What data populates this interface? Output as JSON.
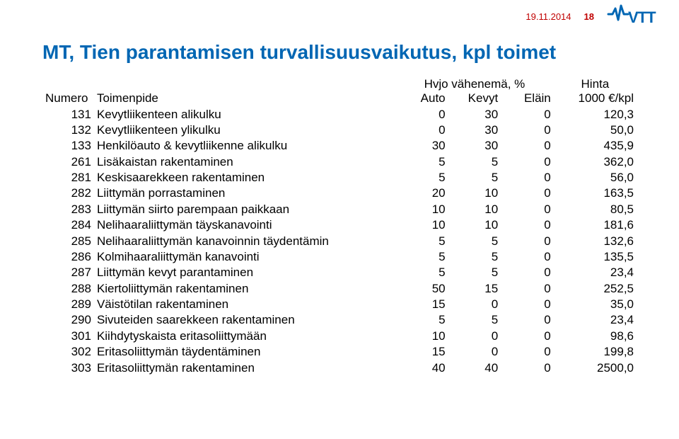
{
  "header": {
    "date": "19.11.2014",
    "page_number": "18"
  },
  "title": "MT, Tien parantamisen turvallisuusvaikutus, kpl toimet",
  "table": {
    "group_headers": {
      "hvjo": "Hvjo vähenemä, %",
      "hinta": "Hinta"
    },
    "col_headers": {
      "numero": "Numero",
      "toimenpide": "Toimenpide",
      "auto": "Auto",
      "kevyt": "Kevyt",
      "elain": "Eläin",
      "price": "1000 €/kpl"
    },
    "rows": [
      {
        "num": "131",
        "desc": "Kevytliikenteen alikulku",
        "auto": "0",
        "kevyt": "30",
        "elain": "0",
        "price": "120,3"
      },
      {
        "num": "132",
        "desc": "Kevytliikenteen ylikulku",
        "auto": "0",
        "kevyt": "30",
        "elain": "0",
        "price": "50,0"
      },
      {
        "num": "133",
        "desc": "Henkilöauto & kevytliikenne alikulku",
        "auto": "30",
        "kevyt": "30",
        "elain": "0",
        "price": "435,9"
      },
      {
        "num": "261",
        "desc": "Lisäkaistan rakentaminen",
        "auto": "5",
        "kevyt": "5",
        "elain": "0",
        "price": "362,0"
      },
      {
        "num": "281",
        "desc": "Keskisaarekkeen rakentaminen",
        "auto": "5",
        "kevyt": "5",
        "elain": "0",
        "price": "56,0"
      },
      {
        "num": "282",
        "desc": "Liittymän porrastaminen",
        "auto": "20",
        "kevyt": "10",
        "elain": "0",
        "price": "163,5"
      },
      {
        "num": "283",
        "desc": "Liittymän siirto parempaan paikkaan",
        "auto": "10",
        "kevyt": "10",
        "elain": "0",
        "price": "80,5"
      },
      {
        "num": "284",
        "desc": "Nelihaaraliittymän täyskanavointi",
        "auto": "10",
        "kevyt": "10",
        "elain": "0",
        "price": "181,6"
      },
      {
        "num": "285",
        "desc": "Nelihaaraliittymän kanavoinnin täydentämin",
        "auto": "5",
        "kevyt": "5",
        "elain": "0",
        "price": "132,6"
      },
      {
        "num": "286",
        "desc": "Kolmihaaraliittymän kanavointi",
        "auto": "5",
        "kevyt": "5",
        "elain": "0",
        "price": "135,5"
      },
      {
        "num": "287",
        "desc": "Liittymän kevyt parantaminen",
        "auto": "5",
        "kevyt": "5",
        "elain": "0",
        "price": "23,4"
      },
      {
        "num": "288",
        "desc": "Kiertoliittymän rakentaminen",
        "auto": "50",
        "kevyt": "15",
        "elain": "0",
        "price": "252,5"
      },
      {
        "num": "289",
        "desc": "Väistötilan rakentaminen",
        "auto": "15",
        "kevyt": "0",
        "elain": "0",
        "price": "35,0"
      },
      {
        "num": "290",
        "desc": "Sivuteiden saarekkeen rakentaminen",
        "auto": "5",
        "kevyt": "5",
        "elain": "0",
        "price": "23,4"
      },
      {
        "num": "301",
        "desc": "Kiihdytyskaista eritasoliittymään",
        "auto": "10",
        "kevyt": "0",
        "elain": "0",
        "price": "98,6"
      },
      {
        "num": "302",
        "desc": "Eritasoliittymän täydentäminen",
        "auto": "15",
        "kevyt": "0",
        "elain": "0",
        "price": "199,8"
      },
      {
        "num": "303",
        "desc": "Eritasoliittymän rakentaminen",
        "auto": "40",
        "kevyt": "40",
        "elain": "0",
        "price": "2500,0"
      }
    ]
  }
}
